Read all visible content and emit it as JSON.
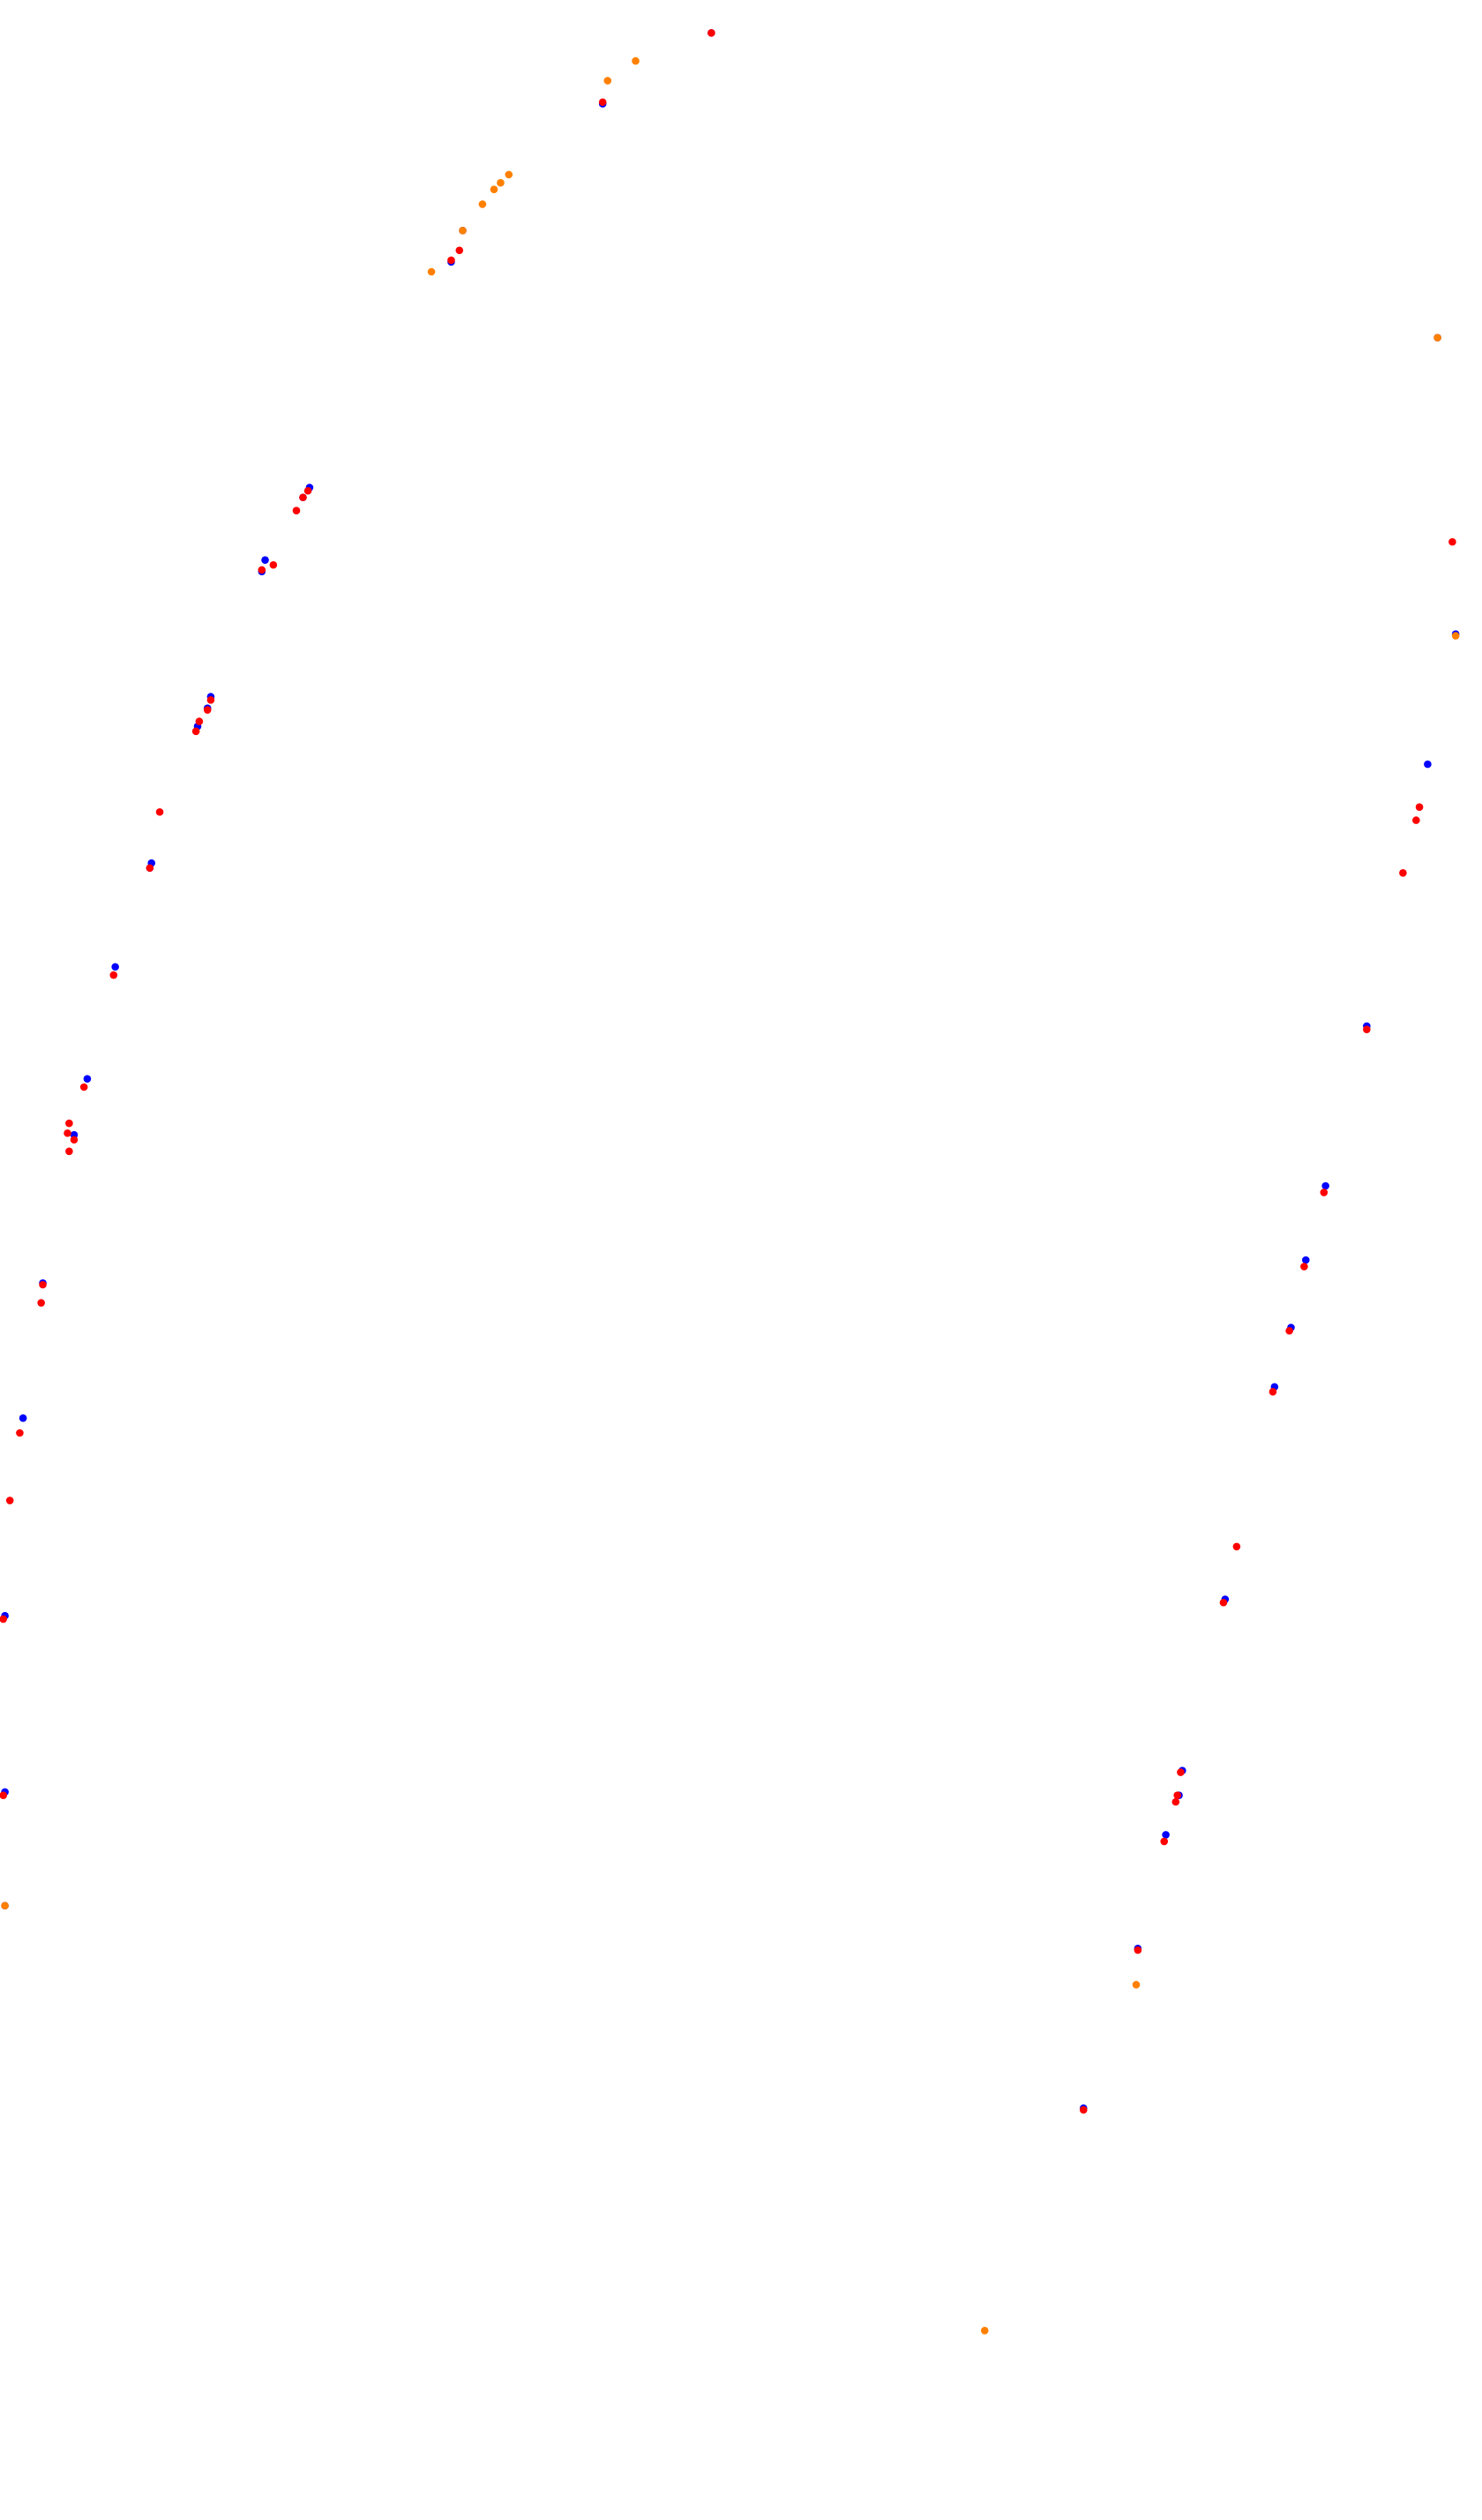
{
  "chart_data": {
    "type": "scatter",
    "title": "",
    "xlabel": "",
    "ylabel": "",
    "axes_visible": false,
    "grid": false,
    "legend": "none",
    "xlim": [
      0,
      900
    ],
    "ylim": [
      1530,
      0
    ],
    "series": [
      {
        "color": "#0000ff",
        "points": [
          [
            432,
            20
          ],
          [
            366,
            63
          ],
          [
            274,
            159
          ],
          [
            281,
            140
          ],
          [
            188,
            296
          ],
          [
            184,
            302
          ],
          [
            161,
            340
          ],
          [
            159,
            347
          ],
          [
            128,
            423
          ],
          [
            126,
            430
          ],
          [
            120,
            441
          ],
          [
            92,
            524
          ],
          [
            91,
            527
          ],
          [
            70,
            587
          ],
          [
            53,
            655
          ],
          [
            45,
            689
          ],
          [
            26,
            779
          ],
          [
            14,
            861
          ],
          [
            3,
            981
          ],
          [
            3,
            1088
          ],
          [
            3,
            1157
          ],
          [
            873,
            205
          ],
          [
            884,
            385
          ],
          [
            867,
            464
          ],
          [
            830,
            623
          ],
          [
            805,
            720
          ],
          [
            793,
            765
          ],
          [
            784,
            806
          ],
          [
            774,
            842
          ],
          [
            744,
            971
          ],
          [
            718,
            1075
          ],
          [
            716,
            1090
          ],
          [
            708,
            1114
          ],
          [
            691,
            1183
          ],
          [
            658,
            1280
          ]
        ]
      },
      {
        "color": "#ff0000",
        "points": [
          [
            432,
            20
          ],
          [
            366,
            62
          ],
          [
            274,
            158
          ],
          [
            279,
            152
          ],
          [
            180,
            310
          ],
          [
            184,
            302
          ],
          [
            187,
            298
          ],
          [
            159,
            346
          ],
          [
            166,
            343
          ],
          [
            119,
            444
          ],
          [
            121,
            438
          ],
          [
            126,
            431
          ],
          [
            128,
            425
          ],
          [
            97,
            493
          ],
          [
            91,
            527
          ],
          [
            69,
            592
          ],
          [
            51,
            660
          ],
          [
            42,
            682
          ],
          [
            41,
            688
          ],
          [
            45,
            692
          ],
          [
            42,
            699
          ],
          [
            26,
            780
          ],
          [
            25,
            791
          ],
          [
            12,
            870
          ],
          [
            6,
            911
          ],
          [
            2,
            983
          ],
          [
            2,
            1090
          ],
          [
            882,
            329
          ],
          [
            862,
            490
          ],
          [
            860,
            498
          ],
          [
            852,
            530
          ],
          [
            830,
            625
          ],
          [
            804,
            724
          ],
          [
            792,
            769
          ],
          [
            783,
            808
          ],
          [
            773,
            845
          ],
          [
            751,
            939
          ],
          [
            743,
            973
          ],
          [
            717,
            1076
          ],
          [
            715,
            1090
          ],
          [
            714,
            1094
          ],
          [
            707,
            1118
          ],
          [
            691,
            1184
          ],
          [
            658,
            1281
          ]
        ]
      },
      {
        "color": "#ff8000",
        "points": [
          [
            386,
            37
          ],
          [
            369,
            49
          ],
          [
            309,
            106
          ],
          [
            304,
            111
          ],
          [
            300,
            115
          ],
          [
            293,
            124
          ],
          [
            281,
            140
          ],
          [
            262,
            165
          ],
          [
            873,
            205
          ],
          [
            884,
            386
          ],
          [
            3,
            1157
          ],
          [
            690,
            1205
          ],
          [
            598,
            1415
          ]
        ]
      }
    ]
  }
}
